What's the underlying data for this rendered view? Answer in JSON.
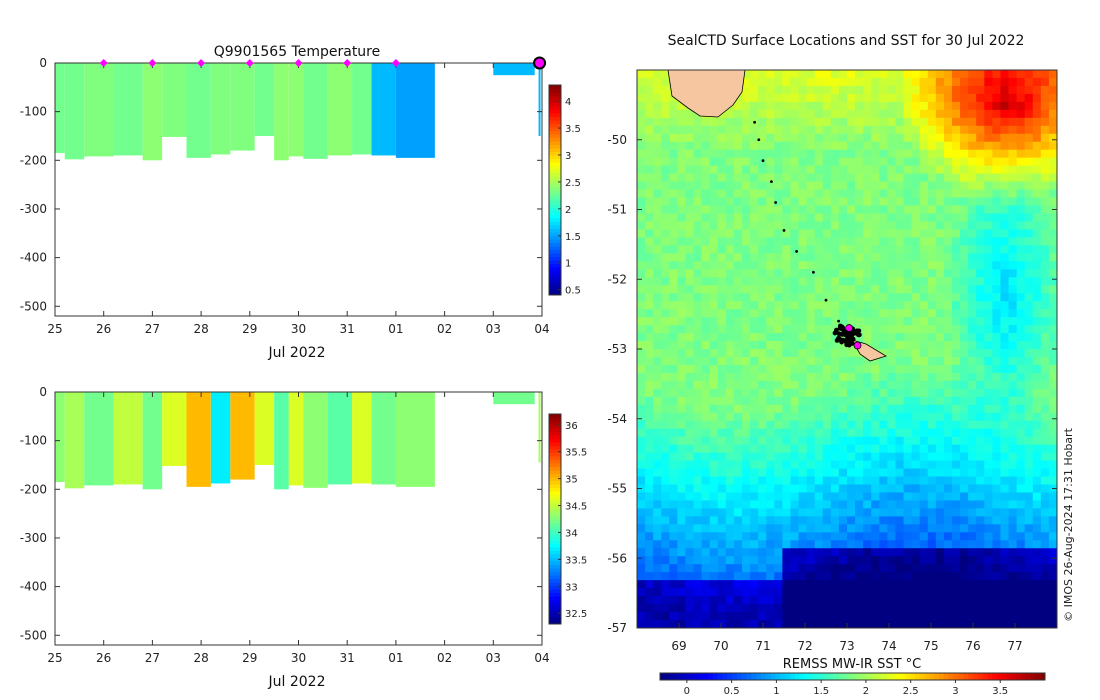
{
  "chart_data": [
    {
      "type": "heatmap",
      "title": "Q9901565  Temperature",
      "xlabel": "Jul 2022",
      "xticks": [
        "25",
        "26",
        "27",
        "28",
        "29",
        "30",
        "31",
        "01",
        "02",
        "03",
        "04"
      ],
      "yticks": [
        0,
        -100,
        -200,
        -300,
        -400,
        -500
      ],
      "ylim": [
        -520,
        0
      ],
      "colorbar_ticks": [
        0.5,
        1,
        1.5,
        2,
        2.5,
        3,
        3.5,
        4
      ],
      "colorbar_range": [
        0.4,
        4.3
      ],
      "profile_markers_day": [
        26,
        27,
        28,
        29,
        30,
        31,
        32
      ],
      "profiles": [
        {
          "day": 25.0,
          "end": 25.2,
          "depth": 185,
          "value": 2.3
        },
        {
          "day": 25.2,
          "end": 25.6,
          "depth": 198,
          "value": 2.3
        },
        {
          "day": 25.6,
          "end": 26.2,
          "depth": 192,
          "value": 2.35
        },
        {
          "day": 26.2,
          "end": 26.8,
          "depth": 190,
          "value": 2.3
        },
        {
          "day": 26.8,
          "end": 27.2,
          "depth": 200,
          "value": 2.4
        },
        {
          "day": 27.2,
          "end": 27.7,
          "depth": 152,
          "value": 2.35
        },
        {
          "day": 27.7,
          "end": 28.2,
          "depth": 195,
          "value": 2.3
        },
        {
          "day": 28.2,
          "end": 28.6,
          "depth": 188,
          "value": 2.35
        },
        {
          "day": 28.6,
          "end": 29.1,
          "depth": 180,
          "value": 2.35
        },
        {
          "day": 29.1,
          "end": 29.5,
          "depth": 150,
          "value": 2.3
        },
        {
          "day": 29.5,
          "end": 29.8,
          "depth": 200,
          "value": 2.4
        },
        {
          "day": 29.8,
          "end": 30.1,
          "depth": 192,
          "value": 2.4
        },
        {
          "day": 30.1,
          "end": 30.6,
          "depth": 197,
          "value": 2.3
        },
        {
          "day": 30.6,
          "end": 31.1,
          "depth": 190,
          "value": 2.4
        },
        {
          "day": 31.1,
          "end": 31.5,
          "depth": 188,
          "value": 2.3
        },
        {
          "day": 31.5,
          "end": 32.0,
          "depth": 190,
          "value": 1.6
        },
        {
          "day": 32.0,
          "end": 32.8,
          "depth": 195,
          "value": 1.5
        },
        {
          "day": 34.0,
          "end": 34.85,
          "depth": 25,
          "value": 1.6
        }
      ]
    },
    {
      "type": "heatmap",
      "title": "",
      "xlabel": "Jul 2022",
      "xticks": [
        "25",
        "26",
        "27",
        "28",
        "29",
        "30",
        "31",
        "01",
        "02",
        "03",
        "04"
      ],
      "yticks": [
        0,
        -100,
        -200,
        -300,
        -400,
        -500
      ],
      "ylim": [
        -520,
        0
      ],
      "colorbar_ticks": [
        32.5,
        33,
        33.5,
        34,
        34.5,
        35,
        35.5,
        36
      ],
      "colorbar_range": [
        32.3,
        36.2
      ],
      "profiles": [
        {
          "day": 25.0,
          "end": 25.2,
          "depth": 185,
          "value": 34.3
        },
        {
          "day": 25.2,
          "end": 25.6,
          "depth": 198,
          "value": 34.4
        },
        {
          "day": 25.6,
          "end": 26.2,
          "depth": 192,
          "value": 34.2
        },
        {
          "day": 26.2,
          "end": 26.8,
          "depth": 190,
          "value": 34.5
        },
        {
          "day": 26.8,
          "end": 27.2,
          "depth": 200,
          "value": 34.2
        },
        {
          "day": 27.2,
          "end": 27.7,
          "depth": 152,
          "value": 34.6
        },
        {
          "day": 27.7,
          "end": 28.2,
          "depth": 195,
          "value": 35.0
        },
        {
          "day": 28.2,
          "end": 28.6,
          "depth": 188,
          "value": 33.7
        },
        {
          "day": 28.6,
          "end": 29.1,
          "depth": 180,
          "value": 35.0
        },
        {
          "day": 29.1,
          "end": 29.5,
          "depth": 150,
          "value": 34.6
        },
        {
          "day": 29.5,
          "end": 29.8,
          "depth": 200,
          "value": 34.1
        },
        {
          "day": 29.8,
          "end": 30.1,
          "depth": 192,
          "value": 34.6
        },
        {
          "day": 30.1,
          "end": 30.6,
          "depth": 197,
          "value": 34.3
        },
        {
          "day": 30.6,
          "end": 31.1,
          "depth": 190,
          "value": 34.1
        },
        {
          "day": 31.1,
          "end": 31.5,
          "depth": 188,
          "value": 34.6
        },
        {
          "day": 31.5,
          "end": 32.0,
          "depth": 190,
          "value": 34.2
        },
        {
          "day": 32.0,
          "end": 32.8,
          "depth": 195,
          "value": 34.3
        },
        {
          "day": 34.0,
          "end": 34.85,
          "depth": 25,
          "value": 34.2
        }
      ]
    },
    {
      "type": "heatmap",
      "title": "SealCTD Surface Locations and SST for 30 Jul 2022",
      "xlabel": "",
      "xticks": [
        69,
        70,
        71,
        72,
        73,
        74,
        75,
        76,
        77
      ],
      "yticks": [
        -50,
        -51,
        -52,
        -53,
        -54,
        -55,
        -56,
        -57
      ],
      "xlim": [
        68.0,
        78.0
      ],
      "ylim": [
        -57.0,
        -49.0
      ],
      "colorbar_label": "REMSS MW-IR SST °C",
      "colorbar_ticks": [
        0,
        0.5,
        1,
        1.5,
        2,
        2.5,
        3,
        3.5
      ],
      "colorbar_range": [
        -0.3,
        4.0
      ],
      "track_points": [
        [
          70.8,
          -49.75
        ],
        [
          70.9,
          -50.0
        ],
        [
          71.0,
          -50.3
        ],
        [
          71.2,
          -50.6
        ],
        [
          71.3,
          -50.9
        ],
        [
          71.5,
          -51.3
        ],
        [
          71.8,
          -51.6
        ],
        [
          72.2,
          -51.9
        ],
        [
          72.5,
          -52.3
        ],
        [
          72.8,
          -52.6
        ]
      ],
      "cluster_center": [
        73.0,
        -52.8
      ],
      "latest_positions": [
        [
          73.05,
          -52.7
        ],
        [
          73.25,
          -52.95
        ]
      ],
      "credit": "© IMOS 26-Aug-2024 17:31 Hobart"
    }
  ],
  "colors": {
    "marker": "#ff00ff",
    "land": "#f5c6a0",
    "track": "#000000"
  }
}
